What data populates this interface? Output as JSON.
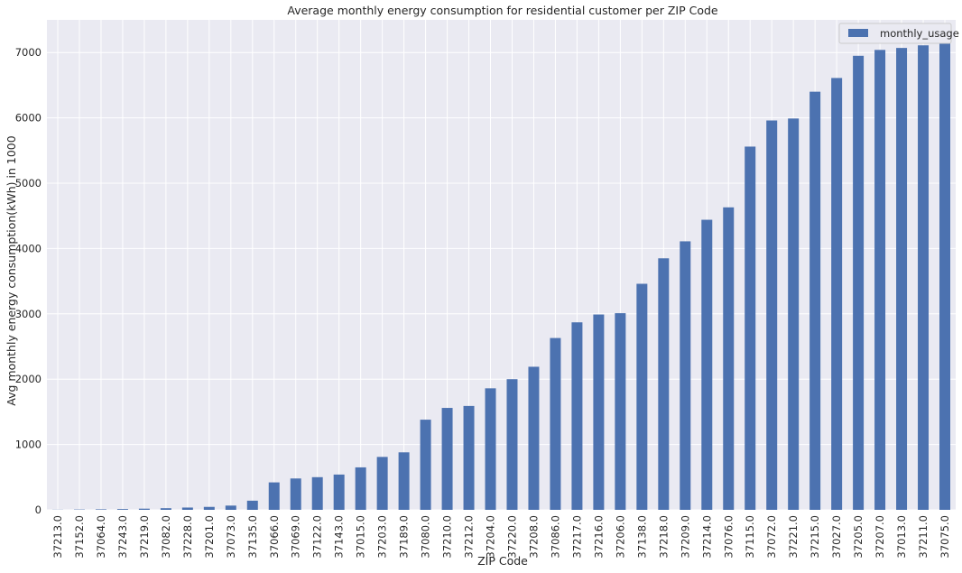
{
  "chart_data": {
    "type": "bar",
    "title": "Average monthly energy consumption for residential customer per ZIP Code",
    "xlabel": "ZIP Code",
    "ylabel": "Avg monthly energy consumption(kWh) in 1000",
    "ylim": [
      0,
      7500
    ],
    "yticks": [
      "0",
      "1000",
      "2000",
      "3000",
      "4000",
      "5000",
      "6000",
      "7000"
    ],
    "grid": true,
    "legend_position": "top-right",
    "categories": [
      "37213.0",
      "37152.0",
      "37064.0",
      "37243.0",
      "37219.0",
      "37082.0",
      "37228.0",
      "37201.0",
      "37073.0",
      "37135.0",
      "37066.0",
      "37069.0",
      "37122.0",
      "37143.0",
      "37015.0",
      "37203.0",
      "37189.0",
      "37080.0",
      "37210.0",
      "37212.0",
      "37204.0",
      "37220.0",
      "37208.0",
      "37086.0",
      "37217.0",
      "37216.0",
      "37206.0",
      "37138.0",
      "37218.0",
      "37209.0",
      "37214.0",
      "37076.0",
      "37115.0",
      "37072.0",
      "37221.0",
      "37215.0",
      "37027.0",
      "37205.0",
      "37207.0",
      "37013.0",
      "37211.0",
      "37075.0"
    ],
    "series": [
      {
        "name": "monthly_usage",
        "color": "#4c72b0",
        "values": [
          2,
          5,
          8,
          12,
          18,
          25,
          35,
          45,
          65,
          140,
          420,
          480,
          500,
          540,
          650,
          810,
          880,
          1380,
          1560,
          1590,
          1860,
          2000,
          2190,
          2630,
          2870,
          2990,
          3010,
          3460,
          3850,
          4110,
          4440,
          4630,
          5560,
          5960,
          5990,
          6400,
          6610,
          6950,
          7040,
          7070,
          7110,
          7160
        ]
      }
    ],
    "colors": {
      "background": "#eaeaf2",
      "grid": "#ffffff"
    }
  }
}
